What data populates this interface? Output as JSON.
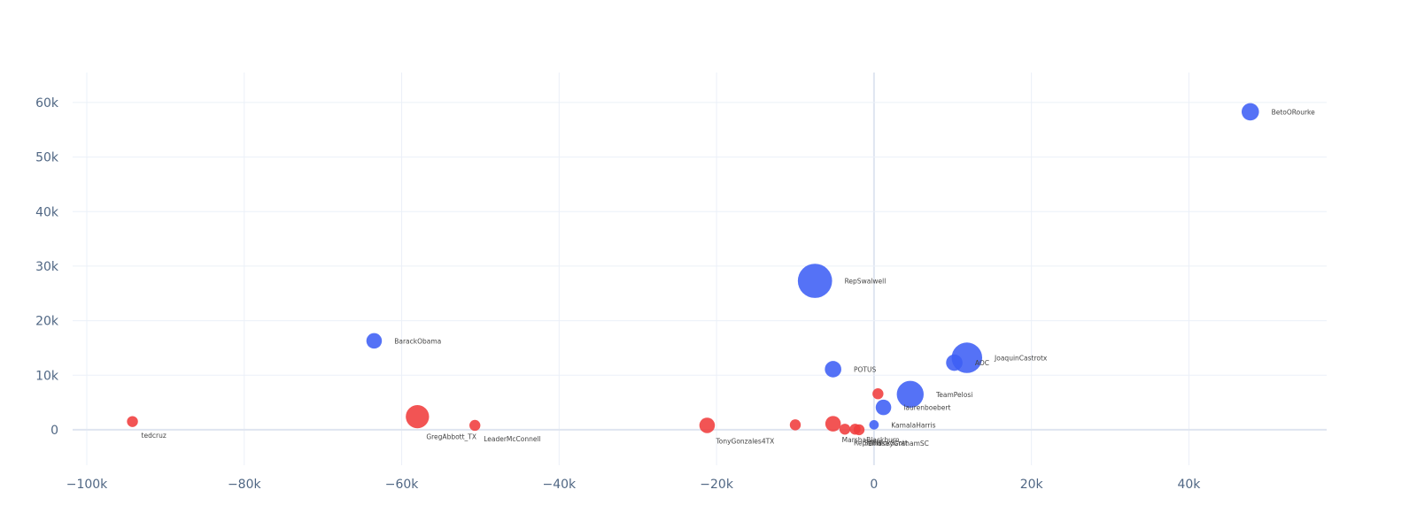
{
  "chart_data": {
    "type": "scatter",
    "title": "",
    "xlabel": "",
    "ylabel": "",
    "xlim": [
      -101800,
      57500
    ],
    "ylim": [
      -6500,
      65500
    ],
    "x_ticks": [
      -100000,
      -80000,
      -60000,
      -40000,
      -20000,
      0,
      20000,
      40000
    ],
    "x_tick_labels": [
      "−100k",
      "−80k",
      "−60k",
      "−40k",
      "−20k",
      "0",
      "20k",
      "40k"
    ],
    "y_ticks": [
      0,
      10000,
      20000,
      30000,
      40000,
      50000,
      60000
    ],
    "y_tick_labels": [
      "0",
      "10k",
      "20k",
      "30k",
      "40k",
      "50k",
      "60k"
    ],
    "grid": true,
    "legend": "none",
    "colors": {
      "blue": "#3d5ef5",
      "red": "#f03c3c",
      "grid": "#ebf0f8",
      "zeroline": "#dfe5f0"
    },
    "points": [
      {
        "label": "BetoORourke",
        "x": 47800,
        "y": 58300,
        "size": 1,
        "color": "blue"
      },
      {
        "label": "RepSwalwell",
        "x": -7500,
        "y": 27300,
        "size": 3.9,
        "color": "blue"
      },
      {
        "label": "BarackObama",
        "x": -63500,
        "y": 16300,
        "size": 0.8,
        "color": "blue"
      },
      {
        "label": "JoaquinCastrotx",
        "x": 11800,
        "y": 13200,
        "size": 3.1,
        "color": "blue"
      },
      {
        "label": "AOC",
        "x": 10200,
        "y": 12300,
        "size": 0.9,
        "color": "blue"
      },
      {
        "label": "POTUS",
        "x": -5200,
        "y": 11100,
        "size": 0.9,
        "color": "blue"
      },
      {
        "label": "TeamPelosi",
        "x": 4600,
        "y": 6500,
        "size": 2.4,
        "color": "blue"
      },
      {
        "label": "",
        "x": 500,
        "y": 6600,
        "size": 0.4,
        "color": "red"
      },
      {
        "label": "laurenboebert",
        "x": 1200,
        "y": 4100,
        "size": 0.8,
        "color": "blue"
      },
      {
        "label": "KamalaHarris",
        "x": 0,
        "y": 900,
        "size": 0.3,
        "color": "blue"
      },
      {
        "label": "tedcruz",
        "x": -94200,
        "y": 1500,
        "size": 0.4,
        "color": "red"
      },
      {
        "label": "GregAbbott_TX",
        "x": -58000,
        "y": 2400,
        "size": 1.8,
        "color": "red"
      },
      {
        "label": "LeaderMcConnell",
        "x": -50700,
        "y": 800,
        "size": 0.4,
        "color": "red"
      },
      {
        "label": "TonyGonzales4TX",
        "x": -21200,
        "y": 800,
        "size": 0.8,
        "color": "red"
      },
      {
        "label": "",
        "x": -10000,
        "y": 900,
        "size": 0.4,
        "color": "red"
      },
      {
        "label": "MarshaBlackburn",
        "x": -5200,
        "y": 1100,
        "size": 0.8,
        "color": "red"
      },
      {
        "label": "RepMTG",
        "x": -3700,
        "y": 100,
        "size": 0.4,
        "color": "red"
      },
      {
        "label": "SenRickScott",
        "x": -2400,
        "y": 100,
        "size": 0.4,
        "color": "red"
      },
      {
        "label": "LindseyGrahamSC",
        "x": -1900,
        "y": 0,
        "size": 0.4,
        "color": "red"
      }
    ]
  }
}
